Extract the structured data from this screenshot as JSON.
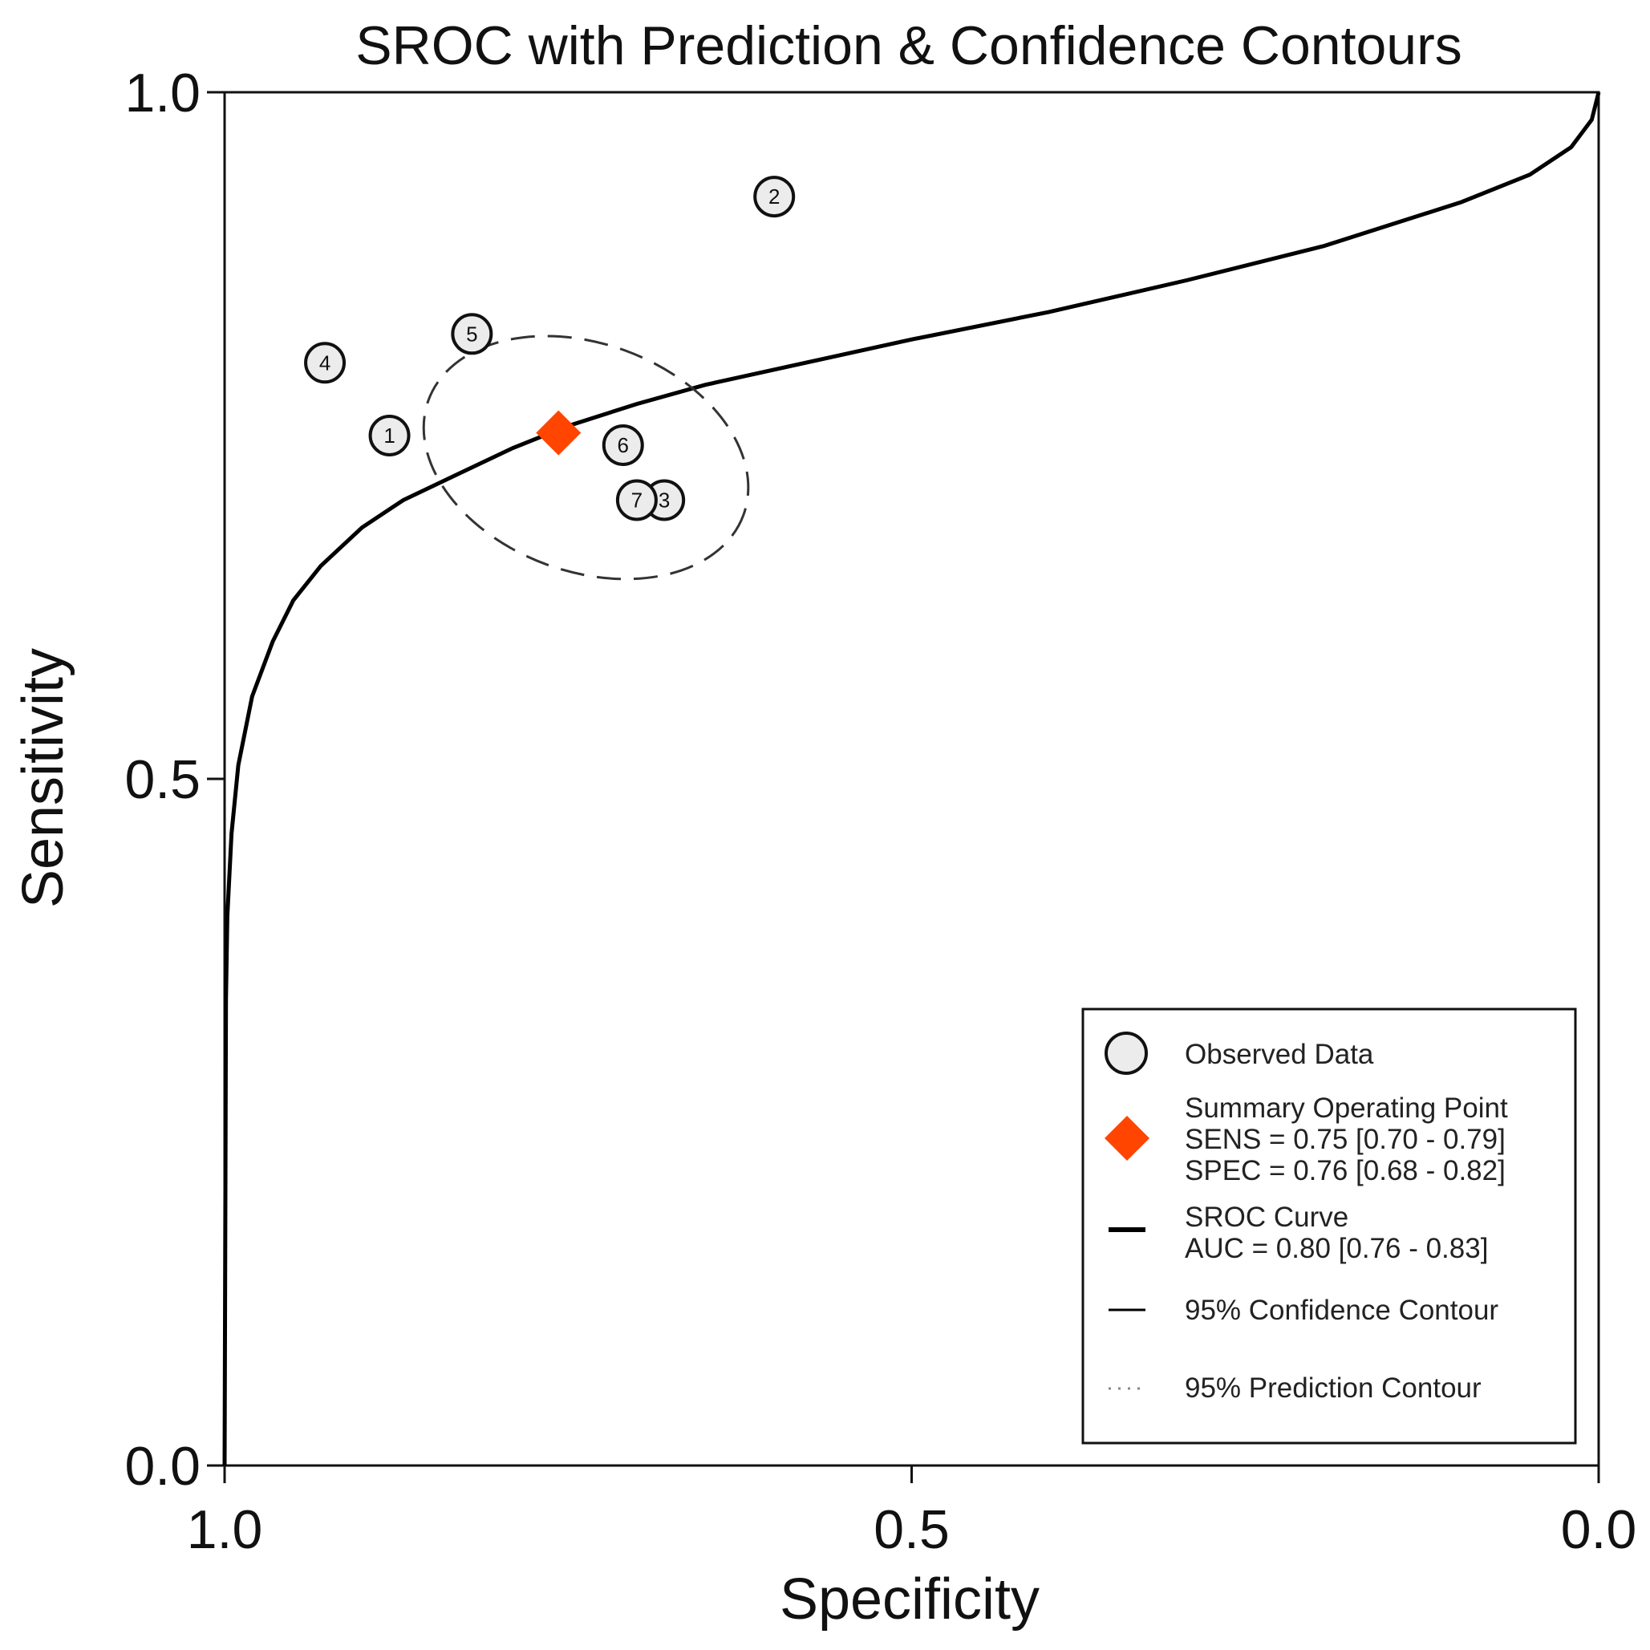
{
  "chart_data": {
    "type": "scatter",
    "title": "SROC with Prediction & Confidence Contours",
    "xlabel": "Specificity",
    "ylabel": "Sensitivity",
    "xlim": [
      1.0,
      0.0
    ],
    "ylim": [
      0.0,
      1.0
    ],
    "x_reversed": true,
    "x_ticks": [
      1.0,
      0.5,
      0.0
    ],
    "x_tick_labels": [
      "1.0",
      "0.5",
      "0.0"
    ],
    "y_ticks": [
      1.0,
      0.5,
      0.0
    ],
    "y_tick_labels": [
      "1.0",
      "0.5",
      "0.0"
    ],
    "grid": false,
    "legend_position": "bottom-right",
    "studies": [
      {
        "id": "1",
        "specificity": 0.88,
        "sensitivity": 0.75
      },
      {
        "id": "2",
        "specificity": 0.6,
        "sensitivity": 0.924
      },
      {
        "id": "3",
        "specificity": 0.68,
        "sensitivity": 0.703
      },
      {
        "id": "4",
        "specificity": 0.927,
        "sensitivity": 0.803
      },
      {
        "id": "5",
        "specificity": 0.82,
        "sensitivity": 0.824
      },
      {
        "id": "6",
        "specificity": 0.71,
        "sensitivity": 0.743
      },
      {
        "id": "7",
        "specificity": 0.7,
        "sensitivity": 0.703
      }
    ],
    "summary_point": {
      "specificity": 0.757,
      "sensitivity": 0.752,
      "color": "#ff4500"
    },
    "confidence_contour": {
      "center_specificity": 0.737,
      "center_sensitivity": 0.734,
      "semi_axis_specificity": 0.122,
      "semi_axis_sensitivity": 0.083,
      "rotation_deg": 20
    },
    "sroc_curve": [
      [
        1.0,
        0.0
      ],
      [
        0.999,
        0.34
      ],
      [
        0.998,
        0.4
      ],
      [
        0.995,
        0.46
      ],
      [
        0.99,
        0.51
      ],
      [
        0.98,
        0.56
      ],
      [
        0.965,
        0.6
      ],
      [
        0.95,
        0.63
      ],
      [
        0.93,
        0.655
      ],
      [
        0.9,
        0.683
      ],
      [
        0.87,
        0.703
      ],
      [
        0.83,
        0.722
      ],
      [
        0.79,
        0.741
      ],
      [
        0.75,
        0.757
      ],
      [
        0.7,
        0.773
      ],
      [
        0.65,
        0.787
      ],
      [
        0.6,
        0.798
      ],
      [
        0.5,
        0.82
      ],
      [
        0.4,
        0.84
      ],
      [
        0.3,
        0.863
      ],
      [
        0.2,
        0.888
      ],
      [
        0.1,
        0.92
      ],
      [
        0.05,
        0.94
      ],
      [
        0.02,
        0.96
      ],
      [
        0.005,
        0.98
      ],
      [
        0.0,
        1.0
      ]
    ],
    "legend": {
      "observed": "Observed Data",
      "summary_title": "Summary Operating Point",
      "summary_sens": "SENS = 0.75 [0.70 - 0.79]",
      "summary_spec": "SPEC = 0.76 [0.68 - 0.82]",
      "sroc_title": "SROC Curve",
      "sroc_auc": "AUC = 0.80 [0.76 - 0.83]",
      "confidence": "95% Confidence Contour",
      "prediction": "95% Prediction Contour"
    }
  }
}
